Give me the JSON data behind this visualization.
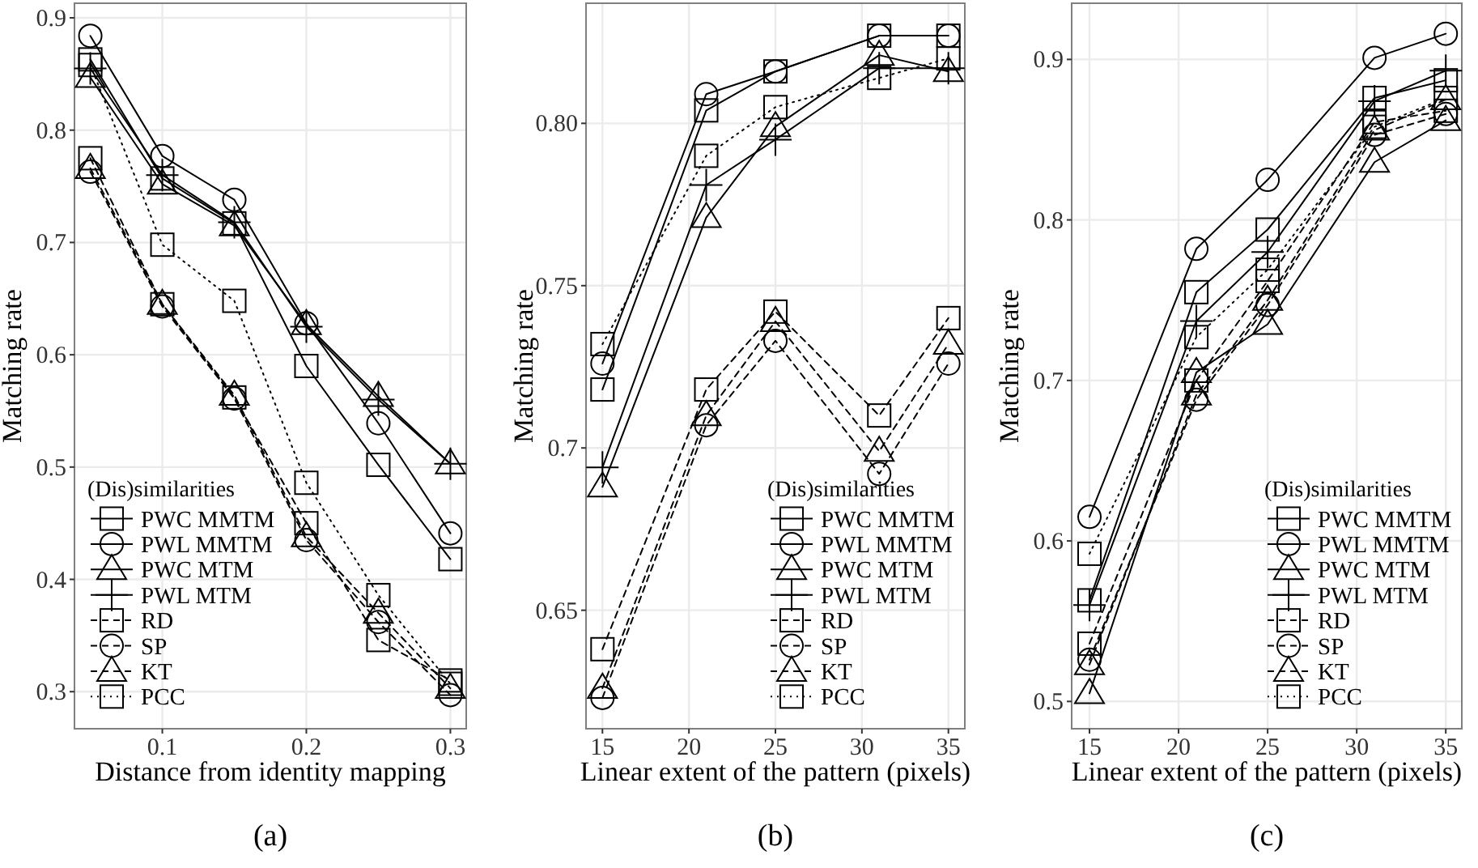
{
  "chart_data": [
    {
      "type": "line",
      "title": "(a)",
      "xlabel": "Distance from identity mapping",
      "ylabel": "Matching rate",
      "legend_title": "(Dis)similarities",
      "legend": "bottom left",
      "grid": true,
      "x": [
        0.05,
        0.1,
        0.15,
        0.2,
        0.25,
        0.3
      ],
      "xlim": [
        0.039,
        0.311
      ],
      "xticks": [
        0.1,
        0.2,
        0.3
      ],
      "ylim": [
        0.267,
        0.913
      ],
      "yticks": [
        0.3,
        0.4,
        0.5,
        0.6,
        0.7,
        0.8,
        0.9
      ],
      "series": [
        {
          "name": "PWC MMTM",
          "color": "#000000",
          "marker": "square",
          "line_style": "solid",
          "values": [
            0.863,
            0.757,
            0.717,
            0.59,
            0.502,
            0.418
          ]
        },
        {
          "name": "PWL MMTM",
          "color": "#000000",
          "marker": "circle",
          "line_style": "solid",
          "values": [
            0.884,
            0.777,
            0.738,
            0.628,
            0.539,
            0.441
          ]
        },
        {
          "name": "PWC MTM",
          "color": "#000000",
          "marker": "triangle",
          "line_style": "solid",
          "values": [
            0.847,
            0.752,
            0.715,
            0.627,
            0.563,
            0.503
          ]
        },
        {
          "name": "PWL MTM",
          "color": "#000000",
          "marker": "cross",
          "line_style": "solid",
          "values": [
            0.855,
            0.76,
            0.718,
            0.625,
            0.56,
            0.503
          ]
        },
        {
          "name": "RD",
          "color": "#000000",
          "marker": "square",
          "line_style": "dashed",
          "values": [
            0.775,
            0.645,
            0.562,
            0.45,
            0.346,
            0.31
          ]
        },
        {
          "name": "SP",
          "color": "#000000",
          "marker": "circle",
          "line_style": "dashed",
          "values": [
            0.763,
            0.643,
            0.561,
            0.435,
            0.362,
            0.297
          ]
        },
        {
          "name": "KT",
          "color": "#000000",
          "marker": "triangle",
          "line_style": "dashed",
          "values": [
            0.766,
            0.645,
            0.564,
            0.438,
            0.37,
            0.303
          ]
        },
        {
          "name": "PCC",
          "color": "#000000",
          "marker": "square",
          "line_style": "dotted",
          "values": [
            0.858,
            0.698,
            0.648,
            0.486,
            0.386,
            0.307
          ]
        }
      ]
    },
    {
      "type": "line",
      "title": "(b)",
      "xlabel": "Linear extent of the pattern (pixels)",
      "ylabel": "Matching rate",
      "legend_title": "(Dis)similarities",
      "legend": "bottom right",
      "grid": true,
      "x": [
        15,
        21,
        25,
        31,
        35
      ],
      "xlim": [
        14.05,
        35.95
      ],
      "xticks": [
        15,
        20,
        25,
        30,
        35
      ],
      "ylim": [
        0.6135,
        0.837
      ],
      "yticks": [
        0.65,
        0.7,
        0.75,
        {
          "value": 0.8,
          "label": "0.80"
        }
      ],
      "series": [
        {
          "name": "PWC MMTM",
          "color": "#000000",
          "marker": "square",
          "line_style": "solid",
          "values": [
            0.718,
            0.804,
            0.816,
            0.827,
            0.827
          ]
        },
        {
          "name": "PWL MMTM",
          "color": "#000000",
          "marker": "circle",
          "line_style": "solid",
          "values": [
            0.726,
            0.809,
            0.816,
            0.827,
            0.827
          ]
        },
        {
          "name": "PWC MTM",
          "color": "#000000",
          "marker": "triangle",
          "line_style": "solid",
          "values": [
            0.688,
            0.771,
            0.799,
            0.821,
            0.816
          ]
        },
        {
          "name": "PWL MTM",
          "color": "#000000",
          "marker": "cross",
          "line_style": "solid",
          "values": [
            0.694,
            0.781,
            0.795,
            0.817,
            0.817
          ]
        },
        {
          "name": "RD",
          "color": "#000000",
          "marker": "square",
          "line_style": "dashed",
          "values": [
            0.638,
            0.718,
            0.742,
            0.71,
            0.74
          ]
        },
        {
          "name": "SP",
          "color": "#000000",
          "marker": "circle",
          "line_style": "dashed",
          "values": [
            0.623,
            0.707,
            0.733,
            0.692,
            0.726
          ]
        },
        {
          "name": "KT",
          "color": "#000000",
          "marker": "triangle",
          "line_style": "dashed",
          "values": [
            0.626,
            0.71,
            0.739,
            0.699,
            0.732
          ]
        },
        {
          "name": "PCC",
          "color": "#000000",
          "marker": "square",
          "line_style": "dotted",
          "values": [
            0.732,
            0.79,
            0.805,
            0.814,
            0.82
          ]
        }
      ]
    },
    {
      "type": "line",
      "title": "(c)",
      "xlabel": "Linear extent of the pattern (pixels)",
      "ylabel": "Matching rate",
      "legend_title": "(Dis)similarities",
      "legend": "bottom right",
      "grid": true,
      "x": [
        15,
        21,
        25,
        31,
        35
      ],
      "xlim": [
        14.0,
        35.9
      ],
      "xticks": [
        15,
        20,
        25,
        30,
        35
      ],
      "ylim": [
        0.483,
        0.935
      ],
      "yticks": [
        0.5,
        0.6,
        0.7,
        0.8,
        0.9
      ],
      "series": [
        {
          "name": "PWC MMTM",
          "color": "#000000",
          "marker": "square",
          "line_style": "solid",
          "values": [
            0.563,
            0.755,
            0.794,
            0.876,
            0.887
          ]
        },
        {
          "name": "PWL MMTM",
          "color": "#000000",
          "marker": "circle",
          "line_style": "solid",
          "values": [
            0.615,
            0.782,
            0.825,
            0.901,
            0.916
          ]
        },
        {
          "name": "PWC MTM",
          "color": "#000000",
          "marker": "triangle",
          "line_style": "solid",
          "values": [
            0.505,
            0.705,
            0.735,
            0.836,
            0.862
          ]
        },
        {
          "name": "PWL MTM",
          "color": "#000000",
          "marker": "cross",
          "line_style": "solid",
          "values": [
            0.56,
            0.737,
            0.78,
            0.874,
            0.893
          ]
        },
        {
          "name": "RD",
          "color": "#000000",
          "marker": "square",
          "line_style": "dashed",
          "values": [
            0.536,
            0.7,
            0.762,
            0.861,
            0.868
          ]
        },
        {
          "name": "SP",
          "color": "#000000",
          "marker": "circle",
          "line_style": "dashed",
          "values": [
            0.526,
            0.688,
            0.747,
            0.853,
            0.866
          ]
        },
        {
          "name": "KT",
          "color": "#000000",
          "marker": "triangle",
          "line_style": "dashed",
          "values": [
            0.523,
            0.691,
            0.75,
            0.856,
            0.875
          ]
        },
        {
          "name": "PCC",
          "color": "#000000",
          "marker": "square",
          "line_style": "dotted",
          "values": [
            0.592,
            0.727,
            0.769,
            0.858,
            0.876
          ]
        }
      ]
    }
  ]
}
